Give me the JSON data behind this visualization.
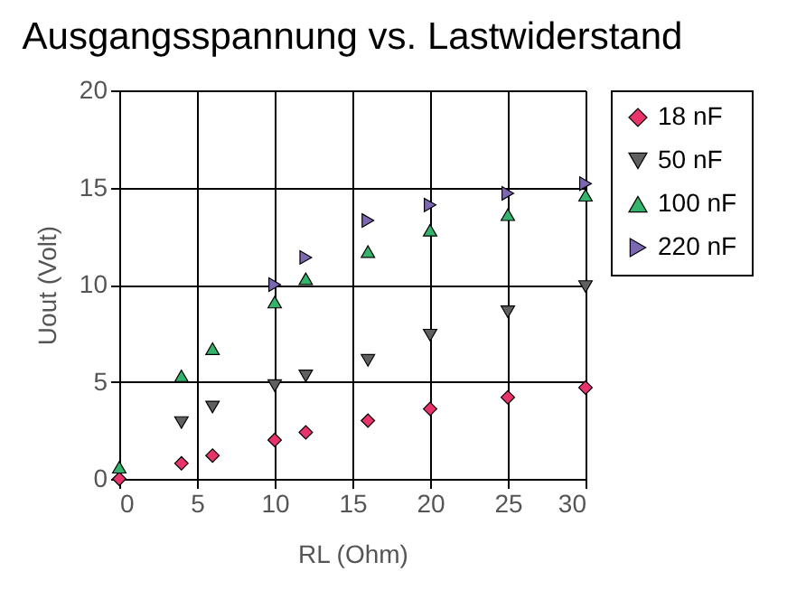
{
  "chart_data": {
    "type": "scatter",
    "title": "Ausgangsspannung vs. Lastwiderstand",
    "xlabel": "RL (Ohm)",
    "ylabel": "Uout (Volt)",
    "x": [
      0,
      4,
      6,
      10,
      12,
      16,
      20,
      25,
      30
    ],
    "series": [
      {
        "name": "18 nF",
        "color": "#e8336b",
        "marker": "diamond",
        "values": [
          0,
          0.8,
          1.2,
          2.0,
          2.4,
          3.0,
          3.6,
          4.2,
          4.7
        ]
      },
      {
        "name": "50 nF",
        "color": "#606060",
        "marker": "triangle-down",
        "values": [
          null,
          2.9,
          3.7,
          4.8,
          5.3,
          6.1,
          7.4,
          8.6,
          9.9
        ]
      },
      {
        "name": "100 nF",
        "color": "#33b36b",
        "marker": "triangle-up",
        "values": [
          0.6,
          5.3,
          6.7,
          9.1,
          10.3,
          11.7,
          12.8,
          13.6,
          14.6
        ]
      },
      {
        "name": "220 nF",
        "color": "#7b68b0",
        "marker": "triangle-right",
        "values": [
          null,
          null,
          null,
          10.0,
          11.4,
          13.3,
          14.1,
          14.7,
          15.2
        ]
      }
    ],
    "xlim": [
      0,
      30
    ],
    "xticks": [
      0,
      5,
      10,
      15,
      20,
      25,
      30
    ],
    "ylim": [
      0,
      20
    ],
    "yticks": [
      0,
      5,
      10,
      15,
      20
    ],
    "grid": true,
    "legend": "right"
  }
}
